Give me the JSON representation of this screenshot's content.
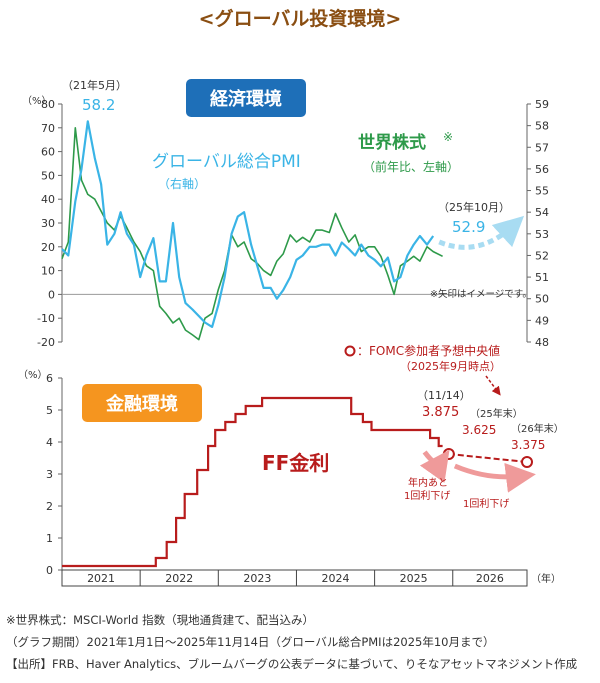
{
  "title": "<グローバル投資環境>",
  "colors": {
    "pmi": "#3ab4e6",
    "stock": "#2e9a4a",
    "ff": "#b81c1c",
    "brand": "#8a4e12",
    "badge_blue": "#1e6fb8",
    "badge_orange": "#f5951f"
  },
  "chart_data": [
    {
      "type": "line",
      "badge": "経済環境",
      "y_left_unit": "（%）",
      "y_left_range": [
        -20,
        80
      ],
      "y_left_ticks": [
        "80",
        "70",
        "60",
        "50",
        "40",
        "30",
        "20",
        "10",
        "0",
        "-10",
        "-20"
      ],
      "y_right_range": [
        48,
        59
      ],
      "y_right_ticks": [
        "59",
        "58",
        "57",
        "56",
        "55",
        "54",
        "53",
        "52",
        "51",
        "50",
        "49",
        "48"
      ],
      "x_range": [
        2021.0,
        2026.95
      ],
      "series": [
        {
          "name": "グローバル総合PMI",
          "label_sub": "（右軸）",
          "axis": "right",
          "x": [
            2021.0,
            2021.08,
            2021.17,
            2021.25,
            2021.33,
            2021.42,
            2021.5,
            2021.58,
            2021.67,
            2021.75,
            2021.83,
            2021.92,
            2022.0,
            2022.08,
            2022.17,
            2022.25,
            2022.33,
            2022.42,
            2022.5,
            2022.58,
            2022.67,
            2022.75,
            2022.83,
            2022.92,
            2023.0,
            2023.08,
            2023.17,
            2023.25,
            2023.33,
            2023.42,
            2023.5,
            2023.58,
            2023.67,
            2023.75,
            2023.83,
            2023.92,
            2024.0,
            2024.08,
            2024.17,
            2024.25,
            2024.33,
            2024.42,
            2024.5,
            2024.58,
            2024.67,
            2024.75,
            2024.83,
            2024.92,
            2025.0,
            2025.08,
            2025.17,
            2025.25,
            2025.33,
            2025.42,
            2025.5,
            2025.58,
            2025.67,
            2025.75
          ],
          "values": [
            52.3,
            52.0,
            54.5,
            56.0,
            58.2,
            56.5,
            55.3,
            52.5,
            53.0,
            54.0,
            53.0,
            52.5,
            51.0,
            52.0,
            52.8,
            50.8,
            50.8,
            53.5,
            51.0,
            49.8,
            49.5,
            49.2,
            48.9,
            48.7,
            49.7,
            51.0,
            53.0,
            53.8,
            54.0,
            52.5,
            51.5,
            50.5,
            50.5,
            50.0,
            50.4,
            51.0,
            51.8,
            52.0,
            52.4,
            52.4,
            52.5,
            52.5,
            52.0,
            52.6,
            52.3,
            52.0,
            52.5,
            52.0,
            51.8,
            51.5,
            51.9,
            50.8,
            51.0,
            52.0,
            52.5,
            52.9,
            52.5,
            52.9
          ]
        },
        {
          "name": "世界株式",
          "name_mark": "※",
          "label_sub": "（前年比、左軸）",
          "axis": "left",
          "x": [
            2021.0,
            2021.08,
            2021.17,
            2021.25,
            2021.33,
            2021.42,
            2021.5,
            2021.58,
            2021.67,
            2021.75,
            2021.83,
            2021.92,
            2022.0,
            2022.08,
            2022.17,
            2022.25,
            2022.33,
            2022.42,
            2022.5,
            2022.58,
            2022.67,
            2022.75,
            2022.83,
            2022.92,
            2023.0,
            2023.08,
            2023.17,
            2023.25,
            2023.33,
            2023.42,
            2023.5,
            2023.58,
            2023.67,
            2023.75,
            2023.83,
            2023.92,
            2024.0,
            2024.08,
            2024.17,
            2024.25,
            2024.33,
            2024.42,
            2024.5,
            2024.58,
            2024.67,
            2024.75,
            2024.83,
            2024.92,
            2025.0,
            2025.08,
            2025.17,
            2025.25,
            2025.33,
            2025.42,
            2025.5,
            2025.58,
            2025.67,
            2025.75,
            2025.87
          ],
          "values": [
            15,
            22,
            70,
            48,
            42,
            40,
            35,
            30,
            27,
            33,
            28,
            22,
            18,
            12,
            10,
            -5,
            -8,
            -12,
            -10,
            -15,
            -17,
            -19,
            -10,
            -8,
            2,
            10,
            25,
            20,
            22,
            15,
            13,
            10,
            8,
            14,
            17,
            25,
            22,
            24,
            22,
            27,
            27,
            26,
            34,
            28,
            22,
            25,
            18,
            20,
            20,
            16,
            8,
            0,
            12,
            14,
            16,
            14,
            20,
            18,
            16
          ]
        }
      ],
      "annotations": {
        "peak_date": "（21年5月）",
        "peak_value": "58.2",
        "latest_date": "（25年10月）",
        "latest_value": "52.9",
        "arrow_note": "※矢印はイメージです。"
      }
    },
    {
      "type": "line",
      "badge": "金融環境",
      "y_unit": "（%）",
      "y_range": [
        0,
        6
      ],
      "y_ticks": [
        "6",
        "5",
        "4",
        "3",
        "2",
        "1",
        "0"
      ],
      "x_range": [
        2021.0,
        2026.95
      ],
      "x_categories": [
        "2021",
        "2022",
        "2023",
        "2024",
        "2025",
        "2026"
      ],
      "x_unit": "（年）",
      "series": [
        {
          "name": "FF金利",
          "x": [
            2021.0,
            2022.2,
            2022.2,
            2022.34,
            2022.34,
            2022.46,
            2022.46,
            2022.57,
            2022.57,
            2022.73,
            2022.73,
            2022.87,
            2022.87,
            2022.96,
            2022.96,
            2023.09,
            2023.09,
            2023.22,
            2023.22,
            2023.35,
            2023.35,
            2023.56,
            2023.56,
            2024.7,
            2024.7,
            2024.85,
            2024.85,
            2024.96,
            2024.96,
            2025.71,
            2025.71,
            2025.82,
            2025.82,
            2025.87
          ],
          "values": [
            0.125,
            0.125,
            0.375,
            0.375,
            0.875,
            0.875,
            1.625,
            1.625,
            2.375,
            2.375,
            3.125,
            3.125,
            3.875,
            3.875,
            4.375,
            4.375,
            4.625,
            4.625,
            4.875,
            4.875,
            5.125,
            5.125,
            5.375,
            5.375,
            4.875,
            4.875,
            4.625,
            4.625,
            4.375,
            4.375,
            4.125,
            4.125,
            3.875,
            3.875
          ]
        }
      ],
      "projections": {
        "legend": "：FOMC参加者予想中央値",
        "legend_sub": "（2025年9月時点）",
        "points": [
          {
            "x": 2025.95,
            "value": 3.625,
            "label_date": "（25年末）",
            "label_value": "3.625"
          },
          {
            "x": 2026.95,
            "value": 3.375,
            "label_date": "（26年末）",
            "label_value": "3.375"
          }
        ],
        "latest_date": "（11/14）",
        "latest_value": "3.875",
        "cut_note_1": [
          "年内あと",
          "1回利下げ"
        ],
        "cut_note_2": "1回利下げ"
      }
    }
  ],
  "notes": [
    "※世界株式：MSCI-World 指数（現地通貨建て、配当込み）",
    "（グラフ期間）2021年1月1日～2025年11月14日（グローバル総合PMIは2025年10月まで）",
    "【出所】FRB、Haver Analytics、ブルームバーグの公表データに基づいて、りそなアセットマネジメント作成"
  ]
}
